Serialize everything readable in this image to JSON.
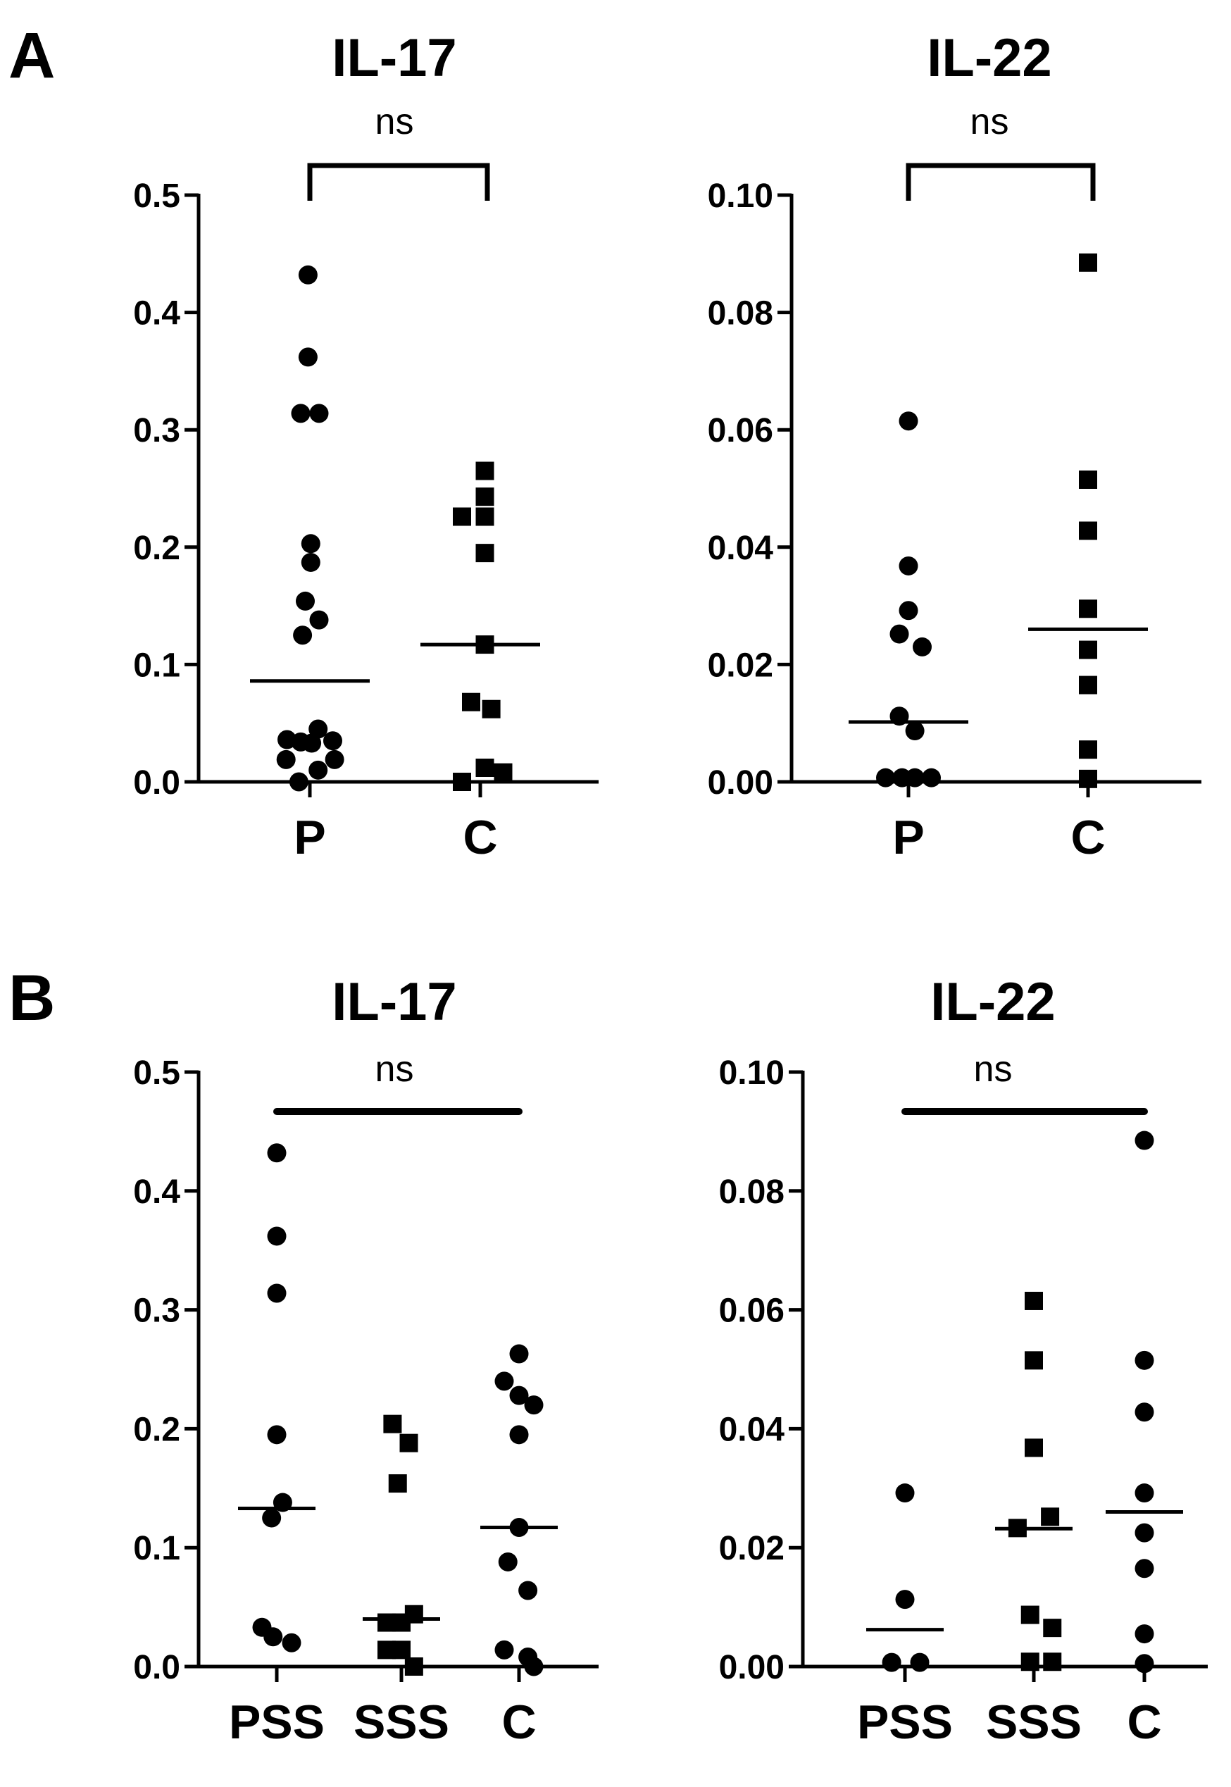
{
  "panels": [
    {
      "letter": "A"
    },
    {
      "letter": "B"
    }
  ],
  "chart_data": [
    {
      "type": "scatter",
      "panel": "A",
      "title": "IL-17",
      "significance": "ns",
      "bracket": "bracket",
      "ylim": [
        0,
        0.5
      ],
      "yticks": [
        0,
        0.1,
        0.2,
        0.3,
        0.4,
        0.5
      ],
      "ytick_labels": [
        "0.0",
        "0.1",
        "0.2",
        "0.3",
        "0.4",
        "0.5"
      ],
      "categories": [
        "P",
        "C"
      ],
      "series": [
        {
          "name": "P",
          "marker": "circle",
          "median": 0.086,
          "points": [
            [
              -0.02,
              0.432
            ],
            [
              -0.02,
              0.362
            ],
            [
              -0.1,
              0.314
            ],
            [
              0.1,
              0.314
            ],
            [
              0.01,
              0.203
            ],
            [
              0.01,
              0.187
            ],
            [
              -0.05,
              0.154
            ],
            [
              0.1,
              0.138
            ],
            [
              -0.08,
              0.125
            ],
            [
              -0.25,
              0.036
            ],
            [
              -0.1,
              0.034
            ],
            [
              0.02,
              0.033
            ],
            [
              0.25,
              0.035
            ],
            [
              0.09,
              0.045
            ],
            [
              -0.26,
              0.019
            ],
            [
              0.27,
              0.019
            ],
            [
              0.09,
              0.01
            ],
            [
              -0.12,
              0.0
            ]
          ]
        },
        {
          "name": "C",
          "marker": "square",
          "median": 0.117,
          "points": [
            [
              0.05,
              0.265
            ],
            [
              0.05,
              0.243
            ],
            [
              -0.2,
              0.226
            ],
            [
              0.05,
              0.226
            ],
            [
              0.05,
              0.195
            ],
            [
              0.05,
              0.117
            ],
            [
              -0.1,
              0.068
            ],
            [
              0.12,
              0.062
            ],
            [
              0.05,
              0.012
            ],
            [
              0.25,
              0.008
            ],
            [
              -0.2,
              0.0
            ]
          ]
        }
      ]
    },
    {
      "type": "scatter",
      "panel": "A",
      "title": "IL-22",
      "significance": "ns",
      "bracket": "bracket",
      "ylim": [
        0,
        0.1
      ],
      "yticks": [
        0,
        0.02,
        0.04,
        0.06,
        0.08,
        0.1
      ],
      "ytick_labels": [
        "0.00",
        "0.02",
        "0.04",
        "0.06",
        "0.08",
        "0.10"
      ],
      "categories": [
        "P",
        "C"
      ],
      "series": [
        {
          "name": "P",
          "marker": "circle",
          "median": 0.0102,
          "points": [
            [
              0.0,
              0.0615
            ],
            [
              0.0,
              0.0368
            ],
            [
              0.0,
              0.0292
            ],
            [
              -0.1,
              0.0252
            ],
            [
              0.15,
              0.023
            ],
            [
              -0.1,
              0.0112
            ],
            [
              0.07,
              0.0087
            ],
            [
              -0.25,
              0.0007
            ],
            [
              -0.07,
              0.0007
            ],
            [
              0.07,
              0.0007
            ],
            [
              0.25,
              0.0007
            ]
          ]
        },
        {
          "name": "C",
          "marker": "square",
          "median": 0.026,
          "points": [
            [
              0.0,
              0.0885
            ],
            [
              0.0,
              0.0515
            ],
            [
              0.0,
              0.0428
            ],
            [
              0.0,
              0.0295
            ],
            [
              0.0,
              0.0225
            ],
            [
              0.0,
              0.0165
            ],
            [
              0.0,
              0.0055
            ],
            [
              0.0,
              0.0005
            ]
          ]
        }
      ]
    },
    {
      "type": "scatter",
      "panel": "B",
      "title": "IL-17",
      "significance": "ns",
      "bracket": "line",
      "ylim": [
        0,
        0.5
      ],
      "yticks": [
        0,
        0.1,
        0.2,
        0.3,
        0.4,
        0.5
      ],
      "ytick_labels": [
        "0.0",
        "0.1",
        "0.2",
        "0.3",
        "0.4",
        "0.5"
      ],
      "categories": [
        "PSS",
        "SSS",
        "C"
      ],
      "series": [
        {
          "name": "PSS",
          "marker": "circle",
          "median": 0.133,
          "points": [
            [
              0.0,
              0.432
            ],
            [
              0.0,
              0.362
            ],
            [
              0.0,
              0.314
            ],
            [
              0.0,
              0.195
            ],
            [
              0.08,
              0.138
            ],
            [
              -0.07,
              0.125
            ],
            [
              -0.2,
              0.033
            ],
            [
              -0.05,
              0.025
            ],
            [
              0.2,
              0.02
            ]
          ]
        },
        {
          "name": "SSS",
          "marker": "square",
          "median": 0.04,
          "points": [
            [
              -0.12,
              0.204
            ],
            [
              0.1,
              0.188
            ],
            [
              -0.05,
              0.154
            ],
            [
              0.17,
              0.044
            ],
            [
              -0.2,
              0.037
            ],
            [
              0.0,
              0.037
            ],
            [
              -0.2,
              0.014
            ],
            [
              0.0,
              0.014
            ],
            [
              0.17,
              0.0
            ]
          ]
        },
        {
          "name": "C",
          "marker": "circle",
          "median": 0.117,
          "points": [
            [
              0.0,
              0.263
            ],
            [
              -0.2,
              0.24
            ],
            [
              0.0,
              0.228
            ],
            [
              0.2,
              0.22
            ],
            [
              0.0,
              0.195
            ],
            [
              0.0,
              0.117
            ],
            [
              -0.15,
              0.088
            ],
            [
              0.12,
              0.064
            ],
            [
              -0.2,
              0.014
            ],
            [
              0.12,
              0.008
            ],
            [
              0.2,
              0.0
            ]
          ]
        }
      ]
    },
    {
      "type": "scatter",
      "panel": "B",
      "title": "IL-22",
      "significance": "ns",
      "bracket": "line",
      "ylim": [
        0,
        0.1
      ],
      "yticks": [
        0,
        0.02,
        0.04,
        0.06,
        0.08,
        0.1
      ],
      "ytick_labels": [
        "0.00",
        "0.02",
        "0.04",
        "0.06",
        "0.08",
        "0.10"
      ],
      "categories": [
        "PSS",
        "SSS",
        "C"
      ],
      "series": [
        {
          "name": "PSS",
          "marker": "circle",
          "median": 0.0062,
          "points": [
            [
              0.0,
              0.0292
            ],
            [
              0.0,
              0.0113
            ],
            [
              -0.18,
              0.0007
            ],
            [
              0.2,
              0.0007
            ]
          ]
        },
        {
          "name": "SSS",
          "marker": "square",
          "median": 0.0232,
          "points": [
            [
              0.0,
              0.0615
            ],
            [
              0.0,
              0.0515
            ],
            [
              0.0,
              0.0368
            ],
            [
              0.22,
              0.0252
            ],
            [
              -0.22,
              0.0233
            ],
            [
              -0.05,
              0.0087
            ],
            [
              0.25,
              0.0065
            ],
            [
              -0.05,
              0.0008
            ],
            [
              0.25,
              0.0008
            ]
          ]
        },
        {
          "name": "C",
          "marker": "circle",
          "median": 0.026,
          "points": [
            [
              0.0,
              0.0885
            ],
            [
              0.0,
              0.0515
            ],
            [
              0.0,
              0.0428
            ],
            [
              0.0,
              0.0292
            ],
            [
              0.0,
              0.0225
            ],
            [
              0.0,
              0.0165
            ],
            [
              0.0,
              0.0055
            ],
            [
              0.0,
              0.0005
            ]
          ]
        }
      ]
    }
  ]
}
